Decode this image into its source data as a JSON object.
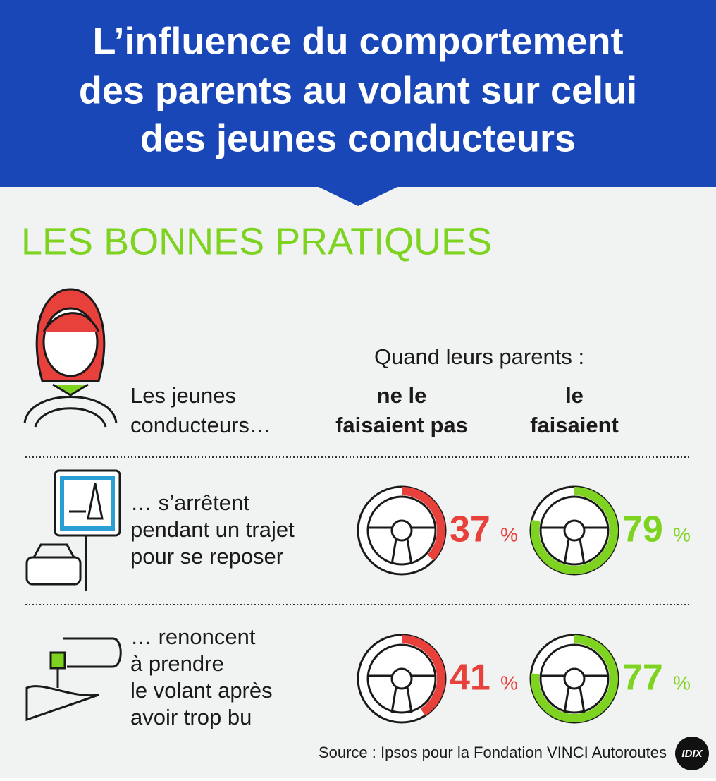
{
  "header": {
    "title_lines": [
      "L’influence du comportement",
      "des parents au volant sur celui",
      "des jeunes conducteurs"
    ]
  },
  "section_title": "LES BONNES PRATIQUES",
  "table": {
    "condition": "Quand leurs parents :",
    "row_header": [
      "Les jeunes",
      "conducteurs…"
    ],
    "columns": [
      {
        "label": [
          "ne le",
          "faisaient pas"
        ],
        "color": "#e8413c"
      },
      {
        "label": [
          "le",
          "faisaient"
        ],
        "color": "#7ed321"
      }
    ],
    "unit": "%",
    "rows": [
      {
        "label": [
          "… s’arrêtent",
          "pendant un trajet",
          "pour se reposer"
        ],
        "values": [
          37,
          79
        ]
      },
      {
        "label": [
          "… renoncent",
          "à prendre",
          "le volant après",
          "avoir trop bu"
        ],
        "values": [
          41,
          77
        ]
      }
    ]
  },
  "source": "Source : Ipsos pour la Fondation VINCI Autoroutes",
  "logo": "IDIX"
}
